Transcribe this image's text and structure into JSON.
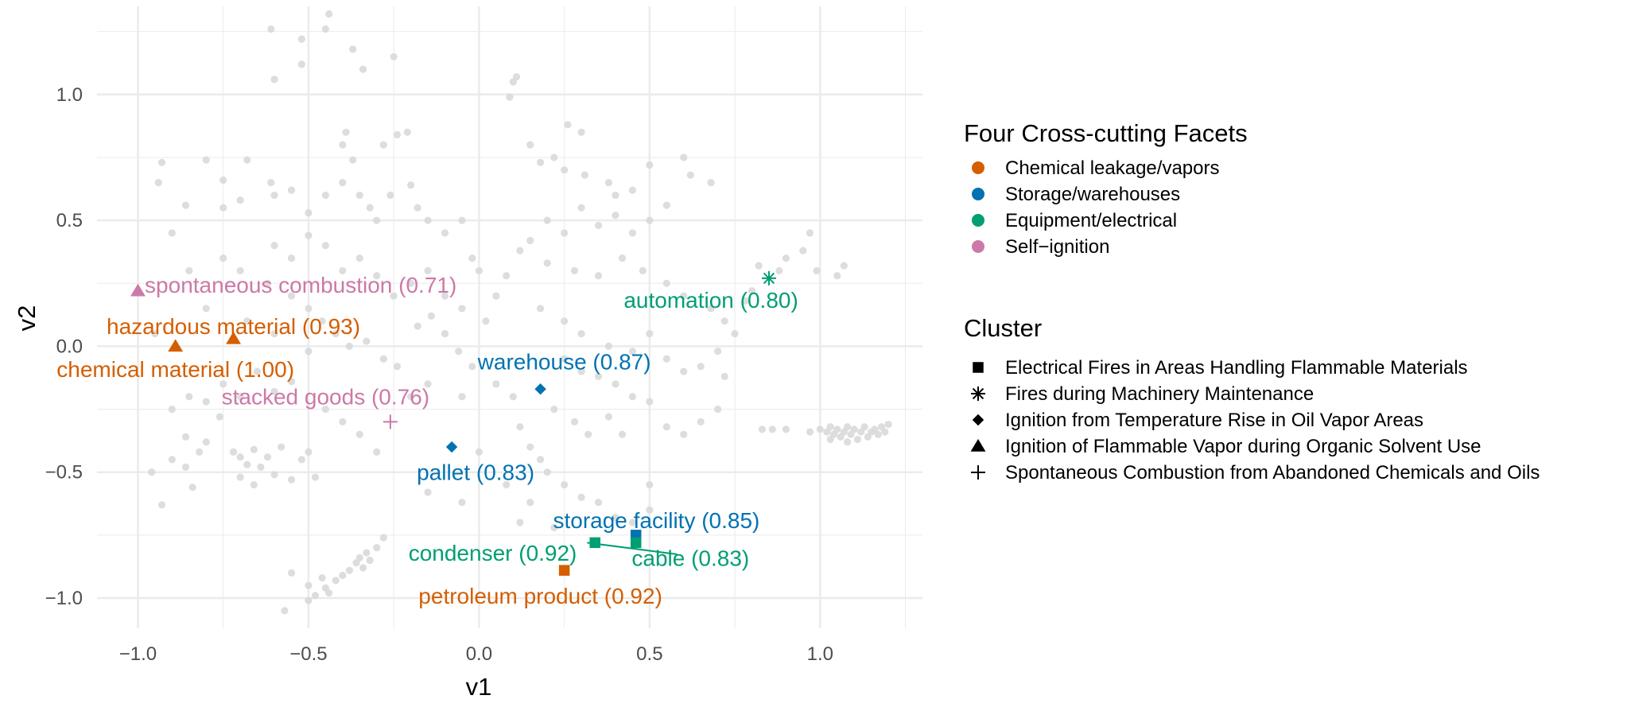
{
  "chart_data": {
    "type": "scatter",
    "xlabel": "v1",
    "ylabel": "v2",
    "xlim": [
      -1.12,
      1.3
    ],
    "ylim": [
      -1.12,
      1.35
    ],
    "x_ticks": [
      -1.0,
      -0.5,
      0.0,
      0.5,
      1.0
    ],
    "x_tick_labels": [
      "−1.0",
      "−0.5",
      "0.0",
      "0.5",
      "1.0"
    ],
    "y_ticks": [
      -1.0,
      -0.5,
      0.0,
      0.5,
      1.0
    ],
    "y_tick_labels": [
      "−1.0",
      "−0.5",
      "0.0",
      "0.5",
      "1.0"
    ],
    "grid": true,
    "colors": {
      "background_point": "#d9d9d9",
      "grid": "#ebebeb",
      "chemical": "#D55E00",
      "storage": "#0072B2",
      "equipment": "#009E73",
      "self_ignition": "#CC79A7"
    },
    "facet_legend": {
      "title": "Four Cross-cutting Facets",
      "entries": [
        {
          "label": "Chemical leakage/vapors",
          "color": "#D55E00"
        },
        {
          "label": "Storage/warehouses",
          "color": "#0072B2"
        },
        {
          "label": "Equipment/electrical",
          "color": "#009E73"
        },
        {
          "label": "Self−ignition",
          "color": "#CC79A7"
        }
      ]
    },
    "cluster_legend": {
      "title": "Cluster",
      "entries": [
        {
          "label": "Electrical Fires in Areas Handling Flammable Materials",
          "shape": "square"
        },
        {
          "label": "Fires during Machinery Maintenance",
          "shape": "asterisk"
        },
        {
          "label": "Ignition from Temperature Rise in Oil Vapor Areas",
          "shape": "diamond"
        },
        {
          "label": "Ignition of Flammable Vapor during Organic Solvent Use",
          "shape": "triangle"
        },
        {
          "label": "Spontaneous Combustion from Abandoned Chemicals and Oils",
          "shape": "plus"
        }
      ]
    },
    "highlighted_points": [
      {
        "label": "spontaneous combustion (0.71)",
        "x": -1.0,
        "y": 0.22,
        "facet": "self_ignition",
        "shape": "triangle",
        "lx": -0.98,
        "ly": 0.245,
        "anchor": "start"
      },
      {
        "label": "hazardous material (0.93)",
        "x": -0.72,
        "y": 0.03,
        "facet": "chemical",
        "shape": "triangle",
        "lx": -0.72,
        "ly": 0.08,
        "anchor": "middle"
      },
      {
        "label": "chemical material (1.00)",
        "x": -0.89,
        "y": 0.0,
        "facet": "chemical",
        "shape": "triangle",
        "lx": -0.89,
        "ly": -0.09,
        "anchor": "middle"
      },
      {
        "label": "automation (0.80)",
        "x": 0.85,
        "y": 0.27,
        "facet": "equipment",
        "shape": "asterisk",
        "lx": 0.68,
        "ly": 0.185,
        "anchor": "middle"
      },
      {
        "label": "warehouse (0.87)",
        "x": 0.18,
        "y": -0.17,
        "facet": "storage",
        "shape": "diamond",
        "lx": 0.25,
        "ly": -0.06,
        "anchor": "middle"
      },
      {
        "label": "stacked goods (0.76)",
        "x": -0.26,
        "y": -0.3,
        "facet": "self_ignition",
        "shape": "plus",
        "lx": -0.45,
        "ly": -0.2,
        "anchor": "middle"
      },
      {
        "label": "pallet (0.83)",
        "x": -0.08,
        "y": -0.4,
        "facet": "storage",
        "shape": "diamond",
        "lx": -0.01,
        "ly": -0.5,
        "anchor": "middle"
      },
      {
        "label": "storage facility (0.85)",
        "x": 0.46,
        "y": -0.75,
        "facet": "storage",
        "shape": "square",
        "lx": 0.52,
        "ly": -0.69,
        "anchor": "middle"
      },
      {
        "label": "condenser (0.92)",
        "x": 0.34,
        "y": -0.78,
        "facet": "equipment",
        "shape": "square",
        "lx": 0.04,
        "ly": -0.82,
        "anchor": "middle",
        "leader": true
      },
      {
        "label": "cable (0.83)",
        "x": 0.46,
        "y": -0.78,
        "facet": "equipment",
        "shape": "square",
        "lx": 0.62,
        "ly": -0.84,
        "anchor": "middle"
      },
      {
        "label": "petroleum product (0.92)",
        "x": 0.25,
        "y": -0.89,
        "facet": "chemical",
        "shape": "square",
        "lx": 0.18,
        "ly": -0.99,
        "anchor": "middle"
      }
    ],
    "background_points": [
      [
        -0.61,
        1.26
      ],
      [
        -0.52,
        1.22
      ],
      [
        -0.45,
        1.26
      ],
      [
        -0.44,
        1.32
      ],
      [
        -0.37,
        1.18
      ],
      [
        -0.34,
        1.1
      ],
      [
        -0.6,
        1.06
      ],
      [
        -0.52,
        1.12
      ],
      [
        -0.25,
        1.15
      ],
      [
        -0.93,
        0.73
      ],
      [
        -0.8,
        0.74
      ],
      [
        -0.68,
        0.74
      ],
      [
        -0.39,
        0.85
      ],
      [
        -0.4,
        0.8
      ],
      [
        -0.37,
        0.74
      ],
      [
        -0.24,
        0.84
      ],
      [
        -0.21,
        0.85
      ],
      [
        -0.28,
        0.8
      ],
      [
        -0.94,
        0.65
      ],
      [
        -0.86,
        0.56
      ],
      [
        -0.75,
        0.66
      ],
      [
        -0.75,
        0.55
      ],
      [
        -0.7,
        0.58
      ],
      [
        -0.61,
        0.65
      ],
      [
        -0.6,
        0.6
      ],
      [
        -0.55,
        0.62
      ],
      [
        -0.5,
        0.53
      ],
      [
        -0.45,
        0.6
      ],
      [
        -0.4,
        0.65
      ],
      [
        -0.35,
        0.6
      ],
      [
        -0.32,
        0.55
      ],
      [
        -0.3,
        0.5
      ],
      [
        -0.26,
        0.6
      ],
      [
        -0.2,
        0.64
      ],
      [
        -0.18,
        0.55
      ],
      [
        -0.15,
        0.5
      ],
      [
        -0.1,
        0.45
      ],
      [
        -0.05,
        0.5
      ],
      [
        -0.02,
        0.35
      ],
      [
        0.0,
        0.3
      ],
      [
        -0.6,
        0.4
      ],
      [
        -0.55,
        0.35
      ],
      [
        -0.5,
        0.44
      ],
      [
        -0.45,
        0.4
      ],
      [
        -0.4,
        0.3
      ],
      [
        -0.35,
        0.35
      ],
      [
        -0.3,
        0.28
      ],
      [
        -0.25,
        0.2
      ],
      [
        -0.2,
        0.25
      ],
      [
        -0.15,
        0.3
      ],
      [
        -0.1,
        0.2
      ],
      [
        -0.05,
        0.15
      ],
      [
        -0.9,
        0.45
      ],
      [
        -0.85,
        0.3
      ],
      [
        -0.7,
        0.3
      ],
      [
        -0.62,
        0.25
      ],
      [
        -0.55,
        0.2
      ],
      [
        -0.5,
        0.15
      ],
      [
        -0.46,
        0.1
      ],
      [
        -0.42,
        0.05
      ],
      [
        -0.38,
        0.0
      ],
      [
        -0.33,
        0.02
      ],
      [
        -0.28,
        -0.05
      ],
      [
        -0.24,
        -0.08
      ],
      [
        -0.18,
        0.08
      ],
      [
        -0.14,
        0.12
      ],
      [
        -0.1,
        0.05
      ],
      [
        -0.06,
        -0.02
      ],
      [
        -0.02,
        -0.08
      ],
      [
        0.02,
        0.1
      ],
      [
        0.05,
        0.2
      ],
      [
        0.08,
        0.28
      ],
      [
        0.1,
        1.05
      ],
      [
        0.11,
        1.07
      ],
      [
        0.09,
        0.99
      ],
      [
        0.26,
        0.88
      ],
      [
        0.3,
        0.85
      ],
      [
        0.15,
        0.8
      ],
      [
        0.18,
        0.73
      ],
      [
        0.22,
        0.75
      ],
      [
        0.25,
        0.7
      ],
      [
        0.31,
        0.68
      ],
      [
        0.38,
        0.65
      ],
      [
        0.4,
        0.6
      ],
      [
        0.45,
        0.62
      ],
      [
        0.5,
        0.72
      ],
      [
        0.6,
        0.75
      ],
      [
        0.62,
        0.68
      ],
      [
        0.68,
        0.65
      ],
      [
        0.55,
        0.56
      ],
      [
        0.5,
        0.5
      ],
      [
        0.45,
        0.45
      ],
      [
        0.4,
        0.52
      ],
      [
        0.35,
        0.48
      ],
      [
        0.3,
        0.55
      ],
      [
        0.25,
        0.45
      ],
      [
        0.2,
        0.5
      ],
      [
        0.15,
        0.42
      ],
      [
        0.12,
        0.38
      ],
      [
        0.2,
        0.33
      ],
      [
        0.28,
        0.3
      ],
      [
        0.35,
        0.28
      ],
      [
        0.42,
        0.35
      ],
      [
        0.48,
        0.3
      ],
      [
        0.55,
        0.25
      ],
      [
        0.6,
        0.2
      ],
      [
        0.68,
        0.15
      ],
      [
        0.72,
        0.1
      ],
      [
        0.18,
        0.15
      ],
      [
        0.25,
        0.1
      ],
      [
        0.3,
        0.05
      ],
      [
        0.38,
        0.0
      ],
      [
        0.45,
        -0.02
      ],
      [
        0.5,
        0.05
      ],
      [
        0.55,
        -0.05
      ],
      [
        0.6,
        -0.1
      ],
      [
        0.65,
        -0.08
      ],
      [
        0.7,
        -0.02
      ],
      [
        0.75,
        0.05
      ],
      [
        0.78,
        0.18
      ],
      [
        0.8,
        0.22
      ],
      [
        0.82,
        0.32
      ],
      [
        0.88,
        0.3
      ],
      [
        0.9,
        0.35
      ],
      [
        0.95,
        0.38
      ],
      [
        0.97,
        0.45
      ],
      [
        0.99,
        0.3
      ],
      [
        1.05,
        0.28
      ],
      [
        1.07,
        0.32
      ],
      [
        0.25,
        -0.05
      ],
      [
        0.3,
        -0.1
      ],
      [
        0.35,
        -0.12
      ],
      [
        0.4,
        -0.15
      ],
      [
        0.45,
        -0.2
      ],
      [
        0.5,
        -0.22
      ],
      [
        0.22,
        -0.25
      ],
      [
        0.28,
        -0.3
      ],
      [
        0.32,
        -0.35
      ],
      [
        0.38,
        -0.28
      ],
      [
        0.42,
        -0.35
      ],
      [
        0.05,
        -0.15
      ],
      [
        0.1,
        -0.2
      ],
      [
        0.12,
        -0.32
      ],
      [
        0.15,
        -0.4
      ],
      [
        0.18,
        -0.45
      ],
      [
        0.2,
        -0.5
      ],
      [
        0.25,
        -0.55
      ],
      [
        0.3,
        -0.6
      ],
      [
        0.35,
        -0.62
      ],
      [
        0.4,
        -0.68
      ],
      [
        0.45,
        -0.7
      ],
      [
        0.5,
        -0.65
      ],
      [
        0.5,
        -0.55
      ],
      [
        -0.96,
        -0.5
      ],
      [
        -0.93,
        -0.63
      ],
      [
        -0.9,
        -0.45
      ],
      [
        -0.86,
        -0.48
      ],
      [
        -0.84,
        -0.56
      ],
      [
        -0.82,
        -0.42
      ],
      [
        -0.8,
        -0.38
      ],
      [
        -0.76,
        -0.28
      ],
      [
        -0.72,
        -0.42
      ],
      [
        -0.7,
        -0.44
      ],
      [
        -0.68,
        -0.47
      ],
      [
        -0.66,
        -0.41
      ],
      [
        -0.64,
        -0.48
      ],
      [
        -0.62,
        -0.44
      ],
      [
        -0.6,
        -0.51
      ],
      [
        -0.58,
        -0.4
      ],
      [
        -0.55,
        -0.53
      ],
      [
        -0.52,
        -0.45
      ],
      [
        -0.5,
        -0.42
      ],
      [
        -0.48,
        -0.52
      ],
      [
        -0.7,
        -0.52
      ],
      [
        -0.66,
        -0.55
      ],
      [
        -0.86,
        -0.36
      ],
      [
        -0.9,
        -0.25
      ],
      [
        -0.85,
        -0.2
      ],
      [
        -0.8,
        -0.22
      ],
      [
        -0.75,
        -0.15
      ],
      [
        -0.7,
        -0.2
      ],
      [
        -0.65,
        -0.1
      ],
      [
        -0.6,
        -0.18
      ],
      [
        -0.55,
        -0.14
      ],
      [
        -0.45,
        -0.25
      ],
      [
        -0.4,
        -0.3
      ],
      [
        -0.35,
        -0.35
      ],
      [
        -0.3,
        -0.42
      ],
      [
        -0.2,
        -0.2
      ],
      [
        -0.15,
        -0.15
      ],
      [
        -0.05,
        -0.2
      ],
      [
        -0.55,
        -0.9
      ],
      [
        -0.5,
        -0.95
      ],
      [
        -0.48,
        -0.99
      ],
      [
        -0.45,
        -0.96
      ],
      [
        -0.42,
        -0.93
      ],
      [
        -0.4,
        -0.91
      ],
      [
        -0.38,
        -0.89
      ],
      [
        -0.36,
        -0.86
      ],
      [
        -0.35,
        -0.84
      ],
      [
        -0.33,
        -0.82
      ],
      [
        -0.34,
        -0.88
      ],
      [
        -0.32,
        -0.85
      ],
      [
        -0.3,
        -0.8
      ],
      [
        -0.28,
        -0.76
      ],
      [
        -0.46,
        -0.92
      ],
      [
        -0.44,
        -0.98
      ],
      [
        -0.5,
        -1.01
      ],
      [
        -0.57,
        -1.05
      ],
      [
        0.83,
        -0.33
      ],
      [
        0.86,
        -0.33
      ],
      [
        0.9,
        -0.33
      ],
      [
        0.97,
        -0.34
      ],
      [
        1.0,
        -0.33
      ],
      [
        1.02,
        -0.34
      ],
      [
        1.03,
        -0.32
      ],
      [
        1.04,
        -0.35
      ],
      [
        1.05,
        -0.33
      ],
      [
        1.06,
        -0.36
      ],
      [
        1.07,
        -0.34
      ],
      [
        1.08,
        -0.32
      ],
      [
        1.09,
        -0.35
      ],
      [
        1.1,
        -0.33
      ],
      [
        1.11,
        -0.37
      ],
      [
        1.12,
        -0.34
      ],
      [
        1.13,
        -0.32
      ],
      [
        1.14,
        -0.36
      ],
      [
        1.15,
        -0.34
      ],
      [
        1.16,
        -0.33
      ],
      [
        1.17,
        -0.35
      ],
      [
        1.18,
        -0.32
      ],
      [
        1.19,
        -0.34
      ],
      [
        1.2,
        -0.31
      ],
      [
        1.03,
        -0.37
      ],
      [
        1.08,
        -0.38
      ],
      [
        0.6,
        -0.35
      ],
      [
        0.65,
        -0.3
      ],
      [
        0.7,
        -0.25
      ],
      [
        0.55,
        -0.32
      ],
      [
        0.72,
        -0.12
      ],
      [
        0.12,
        -0.7
      ],
      [
        0.15,
        -0.62
      ],
      [
        0.22,
        -0.72
      ],
      [
        0.08,
        -0.55
      ],
      [
        -0.15,
        -0.58
      ],
      [
        0.0,
        -0.42
      ],
      [
        -0.05,
        -0.62
      ],
      [
        -0.6,
        0.05
      ],
      [
        -0.5,
        -0.02
      ],
      [
        -0.68,
        0.1
      ],
      [
        -0.8,
        0.15
      ],
      [
        -0.75,
        0.35
      ],
      [
        -0.95,
        0.05
      ]
    ]
  }
}
